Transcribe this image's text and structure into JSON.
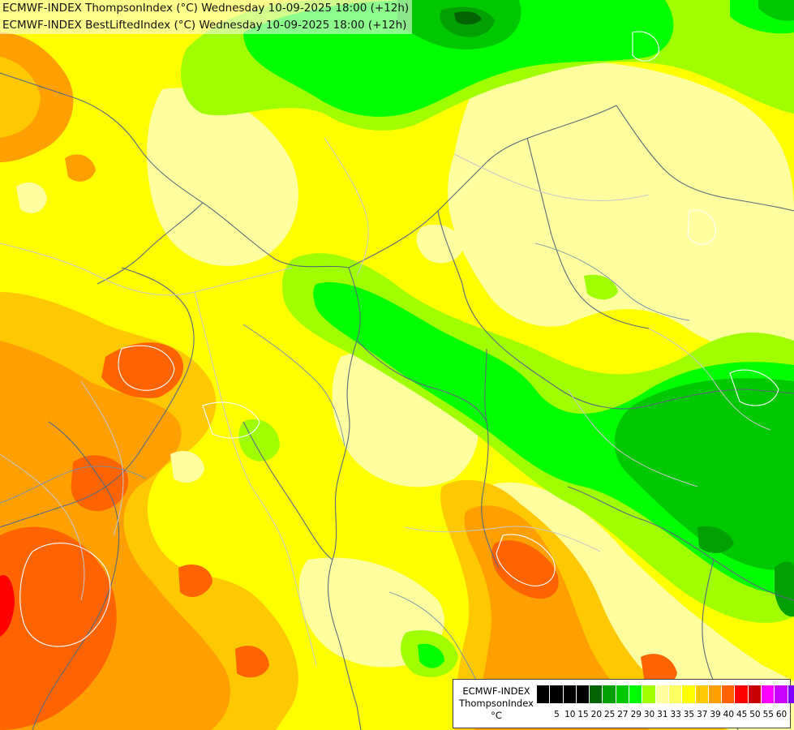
{
  "title": {
    "line1": "ECMWF-INDEX ThompsonIndex (°C) Wednesday 10-09-2025 18:00 (+12h)",
    "line2": "ECMWF-INDEX BestLiftedIndex (°C) Wednesday 10-09-2025 18:00 (+12h)"
  },
  "legend": {
    "model": "ECMWF-INDEX",
    "parameter": "ThompsonIndex",
    "unit": "°C",
    "colors": [
      "#000000",
      "#000000",
      "#000000",
      "#000000",
      "#006400",
      "#00a000",
      "#00c800",
      "#00ff00",
      "#a0ff00",
      "#ffffa0",
      "#ffff64",
      "#ffff00",
      "#ffc800",
      "#ffa000",
      "#ff6400",
      "#ff0000",
      "#c80000",
      "#ff00ff",
      "#c800ff",
      "#8000ff",
      "#0000ff"
    ],
    "ticks": [
      "5",
      "10",
      "15",
      "20",
      "25",
      "27",
      "29",
      "30",
      "31",
      "33",
      "35",
      "37",
      "39",
      "40",
      "45",
      "50",
      "55",
      "60"
    ]
  },
  "palette": {
    "background_yellow": "#ffff00",
    "light_yellow": "#ffffa0",
    "yellow_green": "#a0ff00",
    "green": "#00c800",
    "dark_green": "#00a000",
    "darkest_green": "#006400",
    "gold": "#ffc800",
    "orange": "#ffa000",
    "red_orange": "#ff6400",
    "red": "#ff0000"
  }
}
